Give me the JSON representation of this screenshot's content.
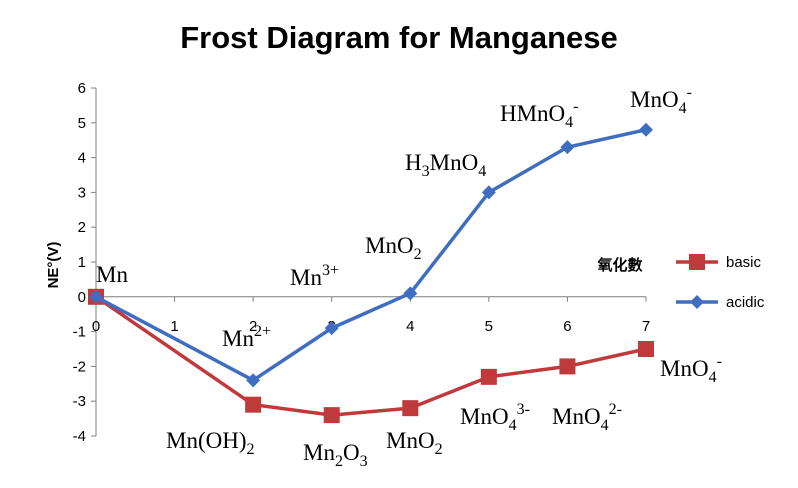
{
  "chart_data": {
    "type": "line",
    "title": "Frost Diagram for Manganese",
    "xlabel": "氧化數",
    "ylabel": "NE°(V)",
    "xlim": [
      0,
      7
    ],
    "ylim": [
      -4,
      6
    ],
    "xticks": [
      "0",
      "1",
      "2",
      "3",
      "4",
      "5",
      "6",
      "7"
    ],
    "yticks": [
      "6",
      "5",
      "4",
      "3",
      "2",
      "1",
      "0",
      "-1",
      "-2",
      "-3",
      "-4"
    ],
    "grid": false,
    "legend_position": "right",
    "series": [
      {
        "name": "basic",
        "color": "#C0393B",
        "marker": "square",
        "x": [
          0,
          2,
          3,
          4,
          5,
          6,
          7
        ],
        "y": [
          0,
          -3.1,
          -3.4,
          -3.2,
          -2.3,
          -2.0,
          -1.5
        ],
        "labels": [
          {
            "text": "Mn(OH)",
            "sub": "2",
            "sup": ""
          },
          {
            "text": "Mn",
            "sub": "2",
            "tail": "O",
            "sub2": "3"
          },
          {
            "text": "MnO",
            "sub": "2",
            "sup": ""
          },
          {
            "text": "MnO",
            "sub": "4",
            "sup": "3-"
          },
          {
            "text": "MnO",
            "sub": "4",
            "sup": "2-"
          },
          {
            "text": "MnO",
            "sub": "4",
            "sup": "-"
          }
        ]
      },
      {
        "name": "acidic",
        "color": "#3F6EC1",
        "marker": "diamond",
        "x": [
          0,
          2,
          3,
          4,
          5,
          6,
          7
        ],
        "y": [
          0,
          -2.4,
          -0.9,
          0.1,
          3.0,
          4.3,
          4.8
        ],
        "labels": [
          {
            "text": "Mn",
            "sub": "",
            "sup": ""
          },
          {
            "text": "Mn",
            "sub": "",
            "sup": "2+"
          },
          {
            "text": "Mn",
            "sub": "",
            "sup": "3+"
          },
          {
            "text": "MnO",
            "sub": "2",
            "sup": ""
          },
          {
            "text": "H",
            "sub": "3",
            "tail": "MnO",
            "sub2": "4"
          },
          {
            "text": "HMnO",
            "sub": "4",
            "sup": "-"
          },
          {
            "text": "MnO",
            "sub": "4",
            "sup": "-"
          }
        ]
      }
    ]
  }
}
